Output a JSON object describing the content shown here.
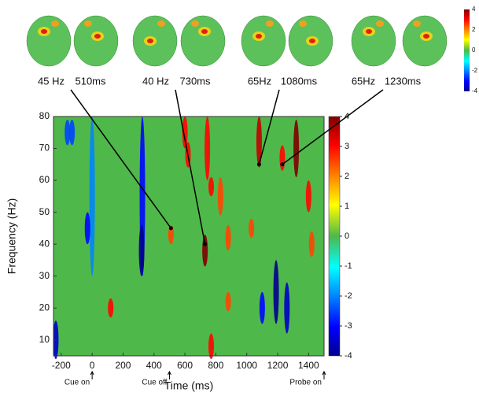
{
  "chart_data": {
    "type": "heatmap",
    "xlabel": "Time (ms)",
    "ylabel": "Frequency (Hz)",
    "xlim": [
      -250,
      1500
    ],
    "xticks": [
      -200,
      0,
      200,
      400,
      600,
      800,
      1000,
      1200,
      1400
    ],
    "ylim": [
      5,
      80
    ],
    "yticks": [
      10,
      20,
      30,
      40,
      50,
      60,
      70,
      80
    ],
    "clim": [
      -4,
      4
    ],
    "cticks": [
      -4,
      -3,
      -2,
      -1,
      0,
      1,
      2,
      3,
      4
    ],
    "topmap_cticks": [
      -4,
      -2,
      0,
      2,
      4
    ],
    "background_value": 0,
    "events": [
      {
        "label": "Cue on",
        "x": 0
      },
      {
        "label": "Cue off",
        "x": 500
      },
      {
        "label": "Probe on",
        "x": 1500
      }
    ],
    "annotations": [
      {
        "freq_label": "45 Hz",
        "time_label": "510ms",
        "x": 510,
        "y": 45
      },
      {
        "freq_label": "40 Hz",
        "time_label": "730ms",
        "x": 730,
        "y": 40
      },
      {
        "freq_label": "65Hz",
        "time_label": "1080ms",
        "x": 1080,
        "y": 65
      },
      {
        "freq_label": "65Hz",
        "time_label": "1230ms",
        "x": 1230,
        "y": 65
      }
    ],
    "blobs": [
      {
        "t": -160,
        "f": 75,
        "df": 4,
        "value": -2.5
      },
      {
        "t": -130,
        "f": 75,
        "df": 4,
        "value": -2.5
      },
      {
        "t": 0,
        "f": 55,
        "df": 25,
        "value": -2
      },
      {
        "t": -30,
        "f": 45,
        "df": 5,
        "value": -3
      },
      {
        "t": 325,
        "f": 55,
        "df": 25,
        "value": -3
      },
      {
        "t": 320,
        "f": 38,
        "df": 8,
        "value": -4
      },
      {
        "t": -235,
        "f": 10,
        "df": 6,
        "value": -3.5
      },
      {
        "t": 120,
        "f": 20,
        "df": 3,
        "value": 3
      },
      {
        "t": 510,
        "f": 43,
        "df": 3,
        "value": 2.5
      },
      {
        "t": 600,
        "f": 75,
        "df": 5,
        "value": 3
      },
      {
        "t": 620,
        "f": 68,
        "df": 4,
        "value": 3
      },
      {
        "t": 730,
        "f": 38,
        "df": 5,
        "value": 4
      },
      {
        "t": 745,
        "f": 70,
        "df": 10,
        "value": 3
      },
      {
        "t": 770,
        "f": 58,
        "df": 3,
        "value": 3
      },
      {
        "t": 830,
        "f": 55,
        "df": 6,
        "value": 2.5
      },
      {
        "t": 770,
        "f": 8,
        "df": 4,
        "value": 3
      },
      {
        "t": 880,
        "f": 42,
        "df": 4,
        "value": 2.5
      },
      {
        "t": 880,
        "f": 22,
        "df": 3,
        "value": 2.5
      },
      {
        "t": 1030,
        "f": 45,
        "df": 3,
        "value": 2.5
      },
      {
        "t": 1080,
        "f": 72,
        "df": 8,
        "value": 3.5
      },
      {
        "t": 1100,
        "f": 20,
        "df": 5,
        "value": -3
      },
      {
        "t": 1190,
        "f": 25,
        "df": 10,
        "value": -4
      },
      {
        "t": 1260,
        "f": 20,
        "df": 8,
        "value": -3.5
      },
      {
        "t": 1230,
        "f": 67,
        "df": 4,
        "value": 3
      },
      {
        "t": 1320,
        "f": 70,
        "df": 9,
        "value": 4
      },
      {
        "t": 1400,
        "f": 55,
        "df": 5,
        "value": 3
      },
      {
        "t": 1420,
        "f": 40,
        "df": 4,
        "value": 2.5
      }
    ]
  }
}
